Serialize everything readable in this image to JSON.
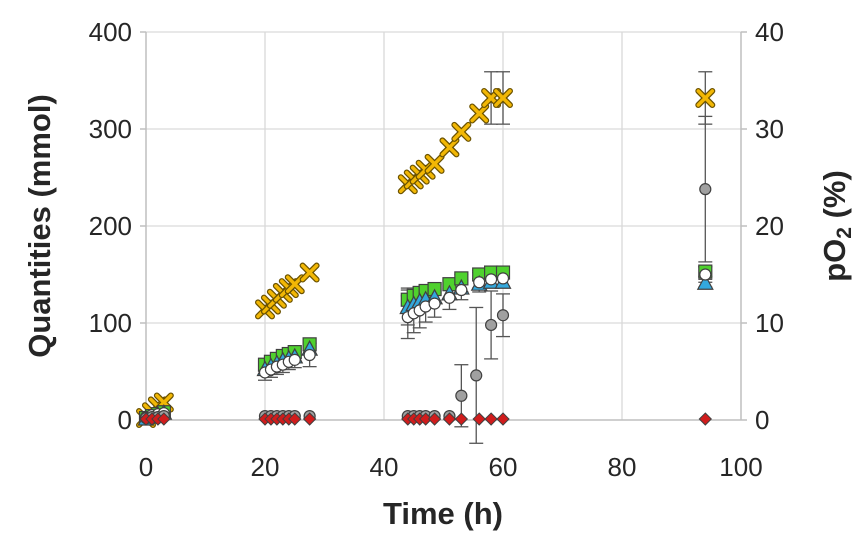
{
  "chart_data": {
    "type": "scatter",
    "xlabel": "Time (h)",
    "ylabel": "Quantities (mmol)",
    "y2label": {
      "main": "pO",
      "sub": "2",
      "unit": " (%)"
    },
    "xlim": [
      0,
      100
    ],
    "ylim": [
      0,
      400
    ],
    "y2lim": [
      0,
      40
    ],
    "grid": true,
    "xticks": [
      "0",
      "20",
      "40",
      "60",
      "80",
      "100"
    ],
    "yticks": [
      "0",
      "100",
      "200",
      "300",
      "400"
    ],
    "y2ticks": [
      "0",
      "10",
      "20",
      "30",
      "40"
    ],
    "colors": {
      "orange": "#f2b705",
      "green": "#4fd12e",
      "blue": "#33a8dd",
      "grey": "#a0a0a0",
      "red": "#d01c1c",
      "white": "#ffffff",
      "edge": "#404040"
    },
    "series": [
      {
        "marker": "x",
        "color": "#f2b705",
        "x": [
          0,
          1,
          2,
          3,
          20,
          21,
          22,
          23,
          24,
          25,
          27.5,
          44,
          45,
          46,
          47,
          48.5,
          51,
          53,
          56,
          58,
          60,
          94
        ],
        "y": [
          2,
          8,
          14,
          18,
          114,
          119,
          125,
          131,
          136,
          140,
          152,
          243,
          248,
          253,
          258,
          264,
          281,
          297,
          316,
          332,
          332,
          332
        ],
        "err": [
          0,
          0,
          0,
          0,
          0,
          0,
          0,
          0,
          0,
          0,
          0,
          0,
          0,
          0,
          0,
          0,
          0,
          0,
          0,
          27,
          27,
          27
        ]
      },
      {
        "marker": "square",
        "color": "#4fd12e",
        "x": [
          0,
          1,
          2,
          3,
          20,
          21,
          22,
          23,
          24,
          25,
          27.5,
          44,
          45,
          46,
          47,
          48.5,
          51,
          53,
          56,
          58,
          60,
          94
        ],
        "y": [
          2,
          4,
          6,
          8,
          57,
          60,
          63,
          66,
          68,
          70,
          78,
          124,
          128,
          131,
          133,
          135,
          140,
          146,
          150,
          152,
          152,
          153
        ],
        "err": [
          0,
          0,
          0,
          0,
          0,
          0,
          0,
          0,
          0,
          0,
          0,
          12,
          8,
          6,
          6,
          5,
          4,
          4,
          4,
          4,
          4,
          5
        ]
      },
      {
        "marker": "triangle",
        "color": "#33a8dd",
        "x": [
          0,
          1,
          2,
          3,
          20,
          21,
          22,
          23,
          24,
          25,
          27.5,
          44,
          45,
          46,
          47,
          48.5,
          51,
          53,
          56,
          58,
          60,
          94
        ],
        "y": [
          1,
          3,
          5,
          7,
          52,
          55,
          58,
          61,
          63,
          65,
          73,
          116,
          119,
          122,
          124,
          126,
          130,
          136,
          140,
          142,
          142,
          141
        ],
        "err": [
          0,
          0,
          0,
          0,
          0,
          0,
          0,
          0,
          0,
          0,
          0,
          18,
          12,
          10,
          8,
          6,
          5,
          4,
          4,
          4,
          4,
          4
        ]
      },
      {
        "marker": "circle",
        "color": "#ffffff",
        "x": [
          0,
          1,
          2,
          3,
          20,
          21,
          22,
          23,
          24,
          25,
          27.5,
          44,
          45,
          46,
          47,
          48.5,
          51,
          53,
          56,
          58,
          60,
          94
        ],
        "y": [
          3,
          5,
          6,
          7,
          49,
          52,
          55,
          57,
          60,
          62,
          67,
          106,
          110,
          113,
          117,
          120,
          126,
          134,
          142,
          145,
          146,
          150
        ],
        "err": [
          0,
          0,
          0,
          0,
          8,
          8,
          8,
          8,
          8,
          8,
          12,
          22,
          20,
          18,
          16,
          14,
          12,
          10,
          10,
          8,
          8,
          8
        ]
      },
      {
        "marker": "circle",
        "color": "#a0a0a0",
        "axis": "y2",
        "x": [
          0,
          1,
          2,
          3,
          20,
          21,
          22,
          23,
          24,
          25,
          27.5,
          44,
          45,
          46,
          47,
          48.5,
          51,
          53,
          55.5,
          58,
          60,
          94
        ],
        "y": [
          0.2,
          0.3,
          0.3,
          0.4,
          0.4,
          0.4,
          0.4,
          0.4,
          0.4,
          0.4,
          0.4,
          0.4,
          0.4,
          0.4,
          0.4,
          0.4,
          0.4,
          2.5,
          4.6,
          9.8,
          10.8,
          23.8
        ],
        "err": [
          0,
          0,
          0,
          0,
          0,
          0,
          0,
          0,
          0,
          0,
          0,
          0,
          0,
          0,
          0,
          0,
          0,
          3.2,
          7,
          3.5,
          2.2,
          7.5
        ]
      },
      {
        "marker": "diamond",
        "color": "#d01c1c",
        "x": [
          0,
          1,
          2,
          3,
          20,
          21,
          22,
          23,
          24,
          25,
          27.5,
          44,
          45,
          46,
          47,
          48.5,
          51,
          53,
          56,
          58,
          60,
          94
        ],
        "y": [
          1,
          1,
          1,
          1,
          1,
          1,
          1,
          1,
          1,
          1,
          1,
          1,
          1,
          1,
          1,
          1,
          1,
          1,
          1,
          1,
          1,
          1
        ],
        "err": [
          0,
          0,
          0,
          0,
          0,
          0,
          0,
          0,
          0,
          0,
          0,
          0,
          0,
          0,
          0,
          0,
          0,
          0,
          0,
          0,
          0,
          0
        ]
      }
    ]
  }
}
